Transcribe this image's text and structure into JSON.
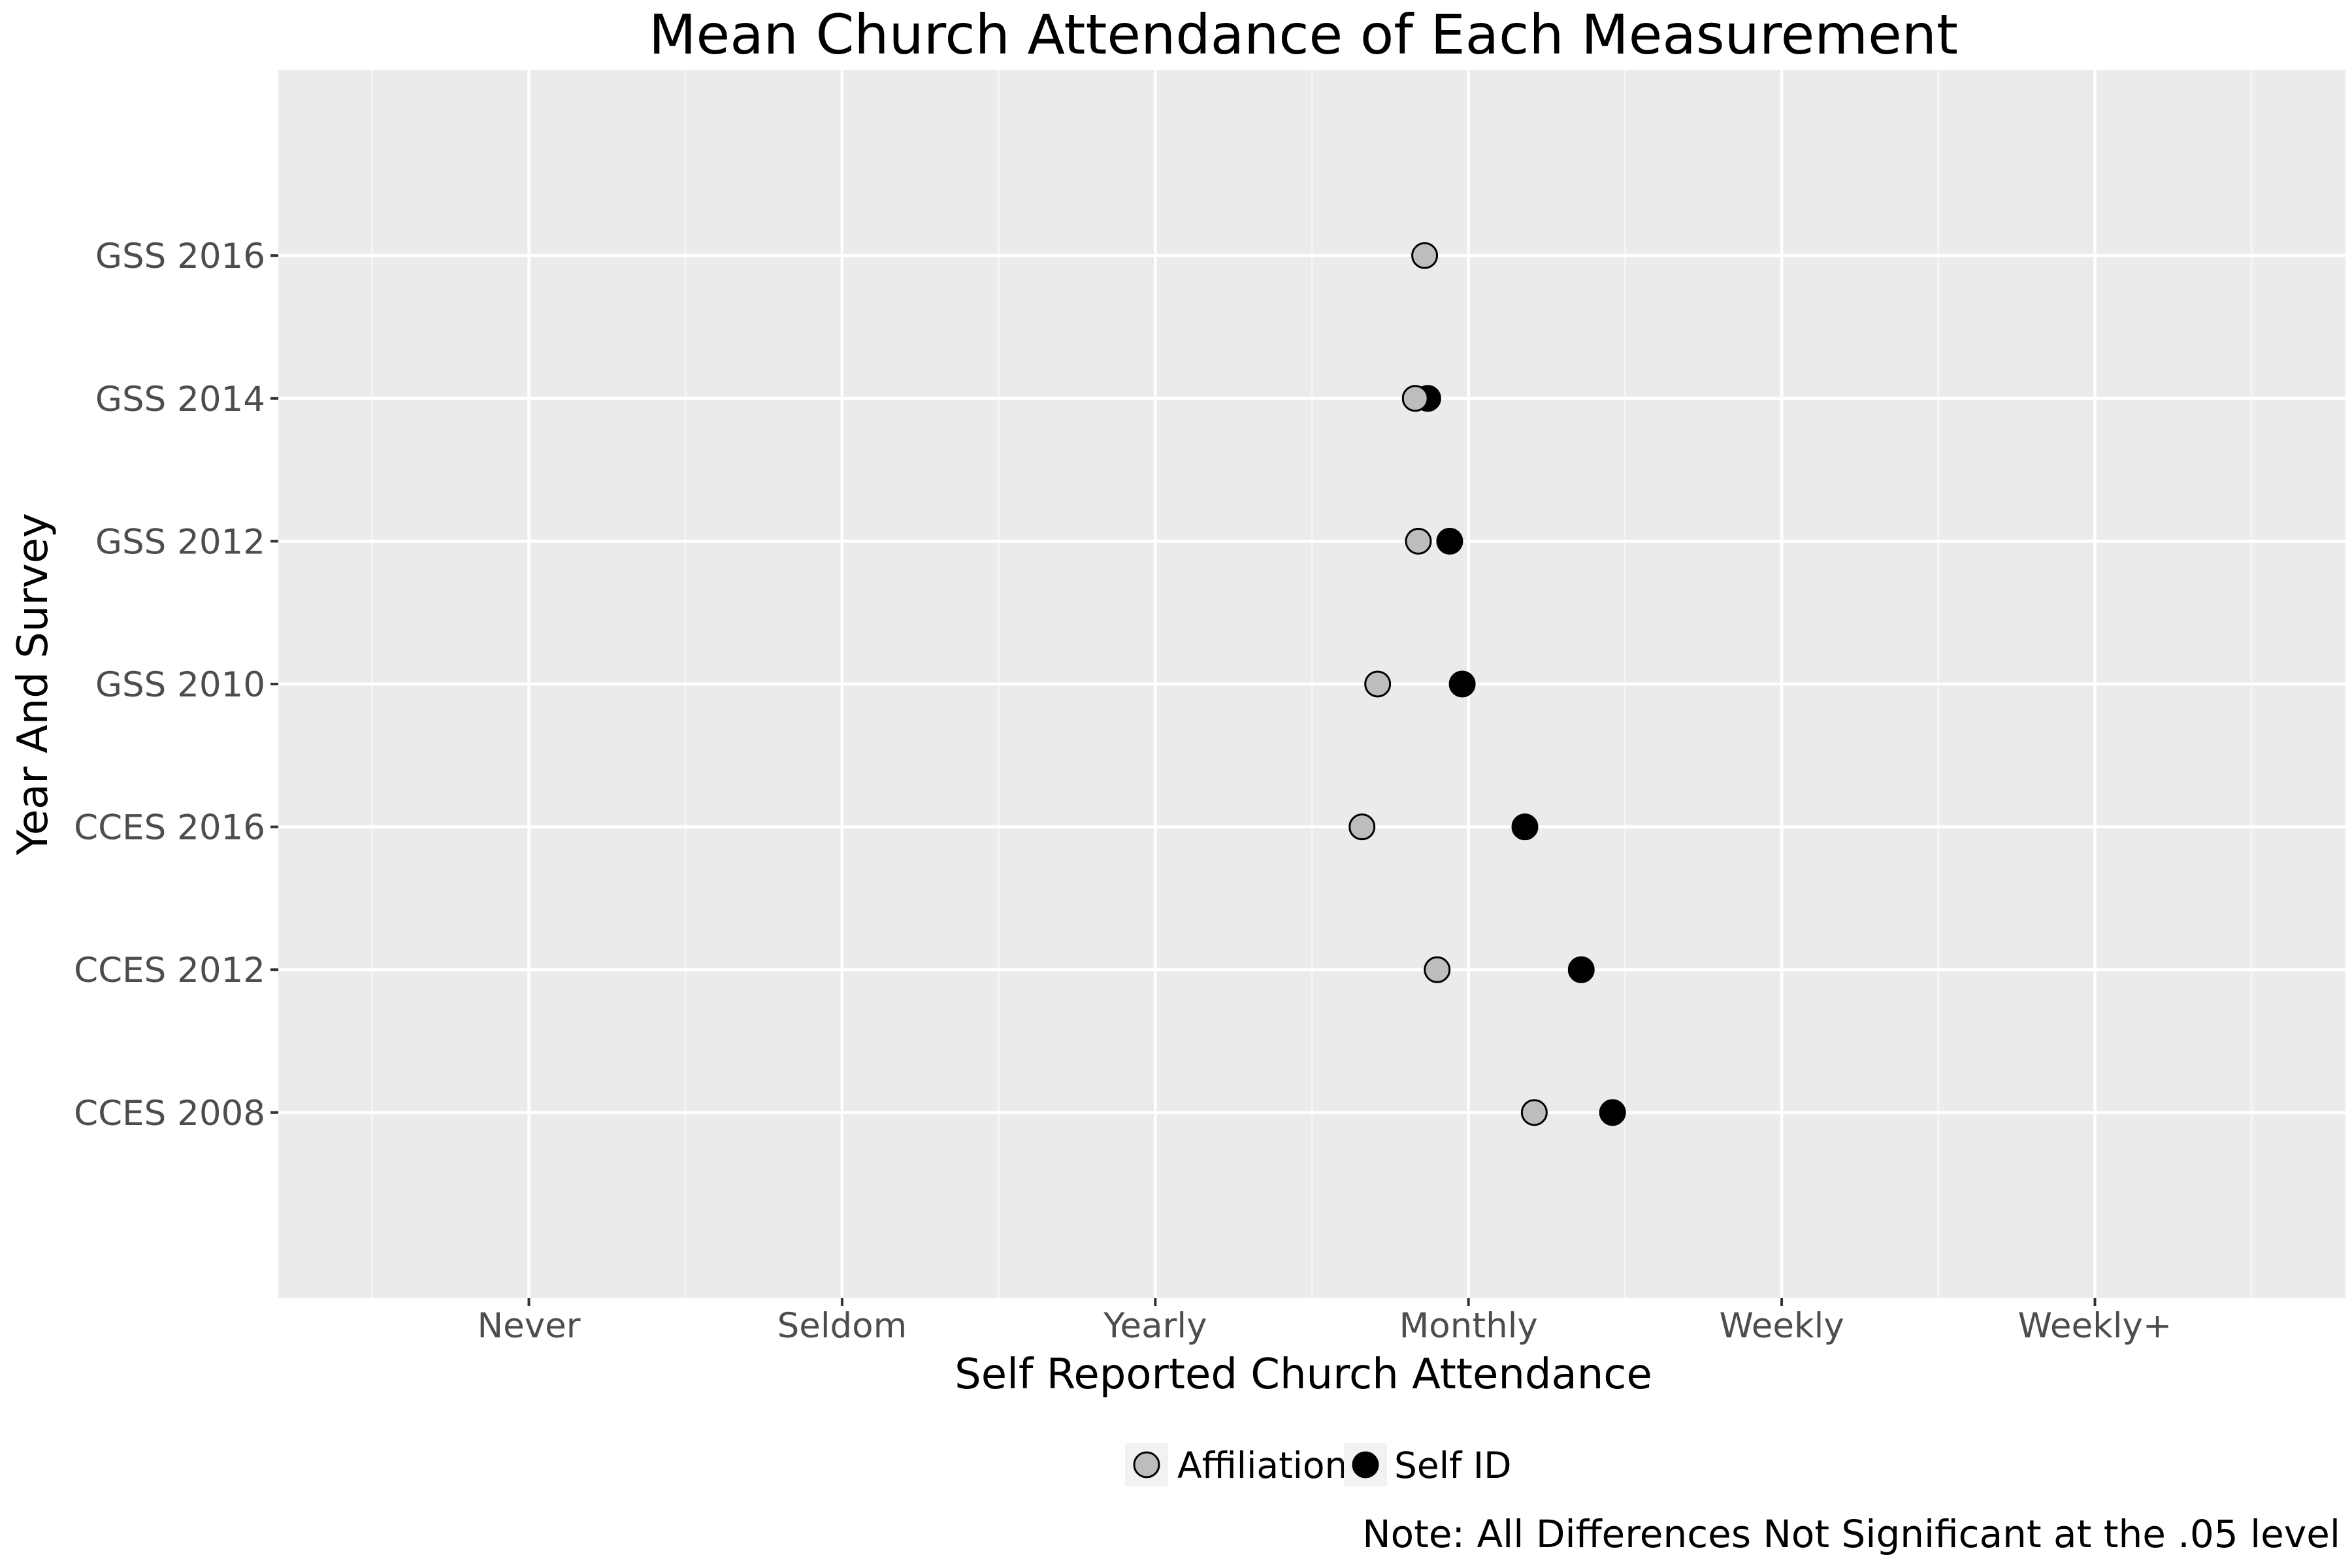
{
  "chart_data": {
    "type": "scatter",
    "title": "Mean Church Attendance of Each Measurement",
    "xlabel": "Self Reported Church Attendance",
    "ylabel": "Year And Survey",
    "x_tick_labels": [
      "Never",
      "Seldom",
      "Yearly",
      "Monthly",
      "Weekly",
      "Weekly+"
    ],
    "x_tick_values": [
      1,
      2,
      3,
      4,
      5,
      6
    ],
    "xlim": [
      0.2,
      6.8
    ],
    "categories": [
      "GSS 2016",
      "GSS 2014",
      "GSS 2012",
      "GSS 2010",
      "CCES 2016",
      "CCES 2012",
      "CCES 2008"
    ],
    "series": [
      {
        "name": "Affiliation",
        "color": "#bdbdbd",
        "values": [
          3.86,
          3.83,
          3.84,
          3.71,
          3.66,
          3.9,
          4.21
        ]
      },
      {
        "name": "Self ID",
        "color": "#000000",
        "values": [
          null,
          3.87,
          3.94,
          3.98,
          4.18,
          4.36,
          4.46
        ]
      }
    ],
    "grid": true,
    "legend_position": "bottom",
    "note": "Note: All Differences Not Significant at the .05 level"
  },
  "colors": {
    "panel_background": "#ebebeb",
    "grid_major": "#ffffff",
    "grid_minor": "#f5f5f5"
  }
}
